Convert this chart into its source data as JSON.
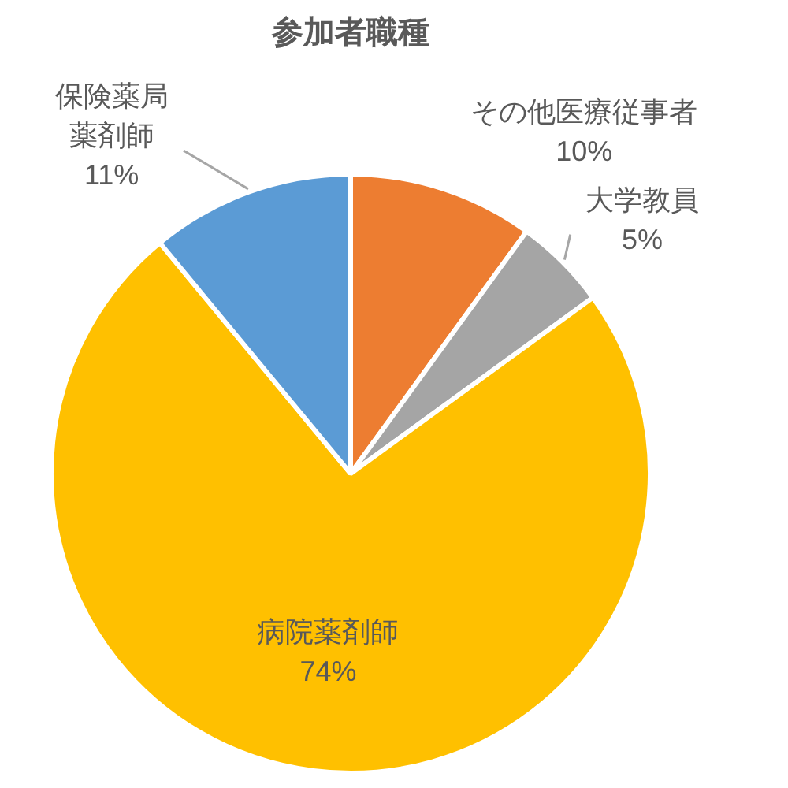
{
  "chart_data": {
    "type": "pie",
    "title": "参加者職種",
    "categories": [
      "その他医療従事者",
      "大学教員",
      "病院薬剤師",
      "保険薬局薬剤師"
    ],
    "values": [
      10,
      5,
      74,
      11
    ],
    "value_labels": [
      "10%",
      "5%",
      "74%",
      "11%"
    ],
    "colors": [
      "#ed7d31",
      "#a5a5a5",
      "#ffc000",
      "#5b9bd5"
    ]
  }
}
